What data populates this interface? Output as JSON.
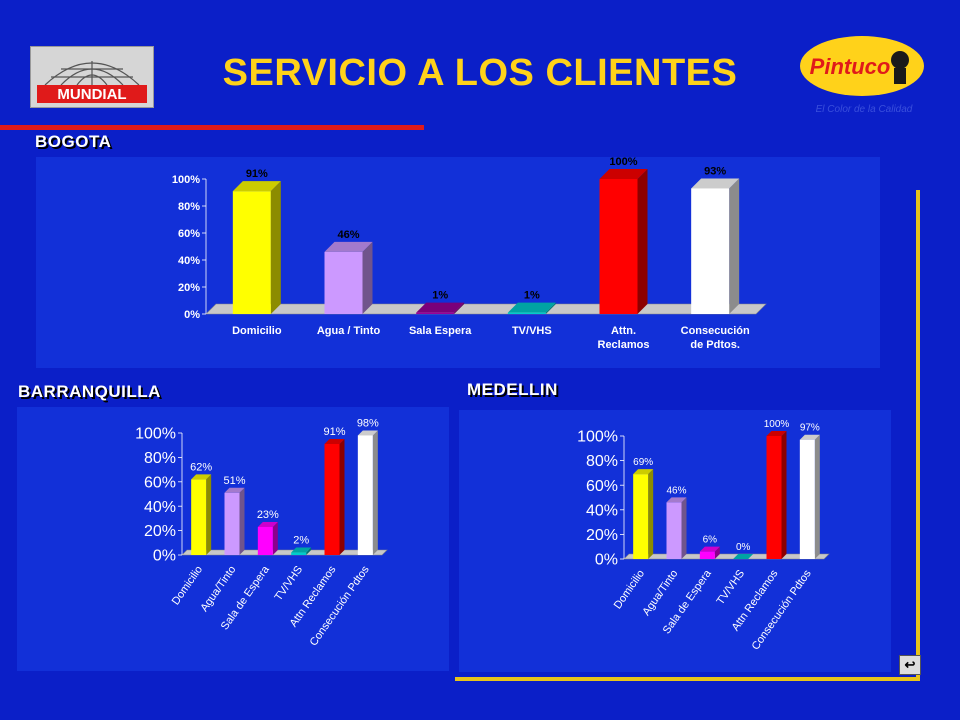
{
  "slide": {
    "title": "SERVICIO A LOS CLIENTES",
    "logo_left_text": "MUNDIAL",
    "logo_right_text": "Pintuco",
    "logo_right_tagline": "El Color de la Calidad",
    "nav_button": "↩",
    "colors": {
      "background": "#0b1fc8",
      "title": "#ffd21a",
      "rule": "#e01a1a",
      "frame": "#e8c41a"
    }
  },
  "chart_data": [
    {
      "type": "bar",
      "section": "BOGOTA",
      "categories": [
        "Domicilio",
        "Agua  / Tinto",
        "Sala Espera",
        "TV/VHS",
        "Attn. Reclamos",
        "Consecución de Pdtos."
      ],
      "values": [
        91,
        46,
        1,
        1,
        100,
        93
      ],
      "value_labels": [
        "91%",
        "46%",
        "1%",
        "1%",
        "100%",
        "93%"
      ],
      "bar_colors": [
        "#ffff00",
        "#cc99ff",
        "#990099",
        "#00cccc",
        "#ff0000",
        "#ffffff"
      ],
      "yticks": [
        "100%",
        "80%",
        "60%",
        "40%",
        "20%",
        "0%"
      ],
      "ylim": [
        0,
        100
      ],
      "grid": false
    },
    {
      "type": "bar",
      "section": "BARRANQUILLA",
      "categories": [
        "Domicilio",
        "Agua/Tinto",
        "Sala de Espera",
        "TV/VHS",
        "Attn Reclamos",
        "Consecución Pdtos"
      ],
      "values": [
        62,
        51,
        23,
        2,
        91,
        98
      ],
      "value_labels": [
        "62%",
        "51%",
        "23%",
        "2%",
        "91%",
        "98%"
      ],
      "bar_colors": [
        "#ffff00",
        "#cc99ff",
        "#ff00ff",
        "#00cccc",
        "#ff0000",
        "#ffffff"
      ],
      "yticks": [
        "100%",
        "80%",
        "60%",
        "40%",
        "20%",
        "0%"
      ],
      "ylim": [
        0,
        100
      ],
      "grid": false
    },
    {
      "type": "bar",
      "section": "MEDELLIN",
      "categories": [
        "Domicilio",
        "Agua/Tinto",
        "Sala de Espera",
        "TV/VHS",
        "Attn Reclamos",
        "Consecución Pdtos"
      ],
      "values": [
        69,
        46,
        6,
        0,
        100,
        97
      ],
      "value_labels": [
        "69%",
        "46%",
        "6%",
        "0%",
        "100%",
        "97%"
      ],
      "bar_colors": [
        "#ffff00",
        "#cc99ff",
        "#ff00ff",
        "#00cccc",
        "#ff0000",
        "#ffffff"
      ],
      "yticks": [
        "100%",
        "80%",
        "60%",
        "40%",
        "20%",
        "0%"
      ],
      "ylim": [
        0,
        100
      ],
      "grid": false
    }
  ]
}
